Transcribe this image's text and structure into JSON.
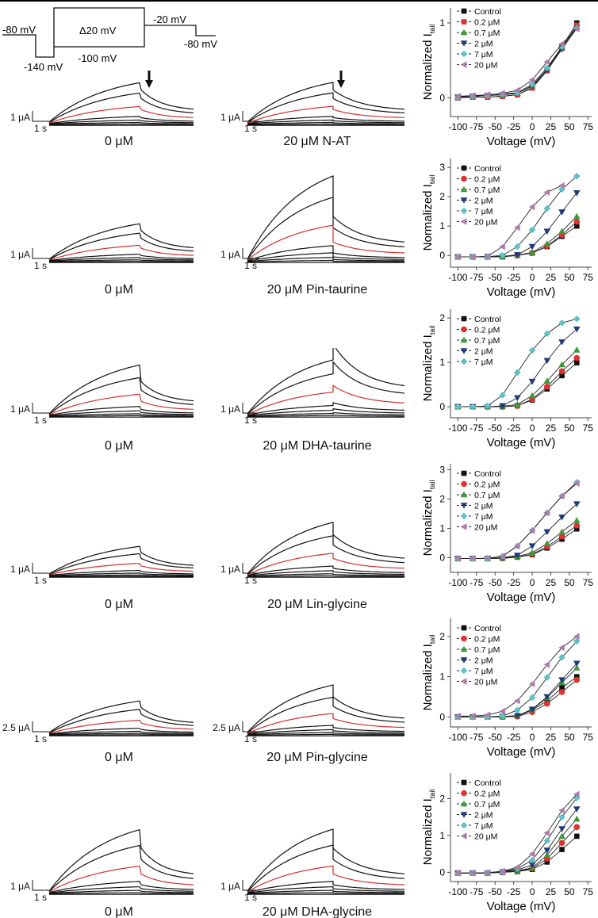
{
  "protocol": {
    "hold_start": "-80 mV",
    "prepulse": "-140 mV",
    "step": "Δ20 mV",
    "step_base": "-100 mV",
    "tail": "-20 mV",
    "hold_end": "-80 mV"
  },
  "rows": [
    {
      "left_label": "0 μM",
      "right_label": "20 μM N-AT",
      "current_scale": "1 μA",
      "time_scale": "1 s",
      "arrow": true
    },
    {
      "left_label": "0 μM",
      "right_label": "20 μM Pin-taurine",
      "current_scale": "1 μA",
      "time_scale": "1 s",
      "arrow": false
    },
    {
      "left_label": "0 μM",
      "right_label": "20 μM DHA-taurine",
      "current_scale": "1 μA",
      "time_scale": "1 s",
      "arrow": false
    },
    {
      "left_label": "0 μM",
      "right_label": "20 μM Lin-glycine",
      "current_scale": "1 μA",
      "time_scale": "1 s",
      "arrow": false
    },
    {
      "left_label": "0 μM",
      "right_label": "20 μM Pin-glycine",
      "current_scale": "2.5 μA",
      "time_scale": "1 s",
      "arrow": false
    },
    {
      "left_label": "0 μM",
      "right_label": "20 μM DHA-glycine",
      "current_scale": "1 μA",
      "time_scale": "1 s",
      "arrow": false
    }
  ],
  "series_style": {
    "Control": {
      "color": "#111111",
      "marker": "square"
    },
    "0.2 μM": {
      "color": "#e03030",
      "marker": "circle"
    },
    "0.7 μM": {
      "color": "#3a9a3a",
      "marker": "triangle-up"
    },
    "2 μM": {
      "color": "#1f3a7a",
      "marker": "triangle-down"
    },
    "7 μM": {
      "color": "#5fc0c8",
      "marker": "diamond"
    },
    "20 μM": {
      "color": "#b07aaa",
      "marker": "triangle-left"
    }
  },
  "chart_data": [
    {
      "type": "line",
      "xlabel": "Voltage (mV)",
      "ylabel": "Normalized I",
      "ylabel_sub": "tail",
      "xlim": [
        -110,
        80
      ],
      "ylim": [
        -0.25,
        1.2
      ],
      "xticks": [
        -100,
        -75,
        -50,
        -25,
        0,
        25,
        50,
        75
      ],
      "yticks": [
        0,
        1
      ],
      "legend": "top-left",
      "x": [
        -100,
        -80,
        -60,
        -40,
        -20,
        0,
        20,
        40,
        60
      ],
      "series": [
        {
          "name": "Control",
          "values": [
            0,
            0.01,
            0.01,
            0.02,
            0.04,
            0.14,
            0.38,
            0.68,
            1.0
          ]
        },
        {
          "name": "0.2 μM",
          "values": [
            0,
            0.01,
            0.01,
            0.02,
            0.04,
            0.13,
            0.36,
            0.66,
            0.97
          ]
        },
        {
          "name": "0.7 μM",
          "values": [
            0.01,
            0.02,
            0.03,
            0.04,
            0.06,
            0.16,
            0.38,
            0.67,
            0.95
          ]
        },
        {
          "name": "2 μM",
          "values": [
            0.01,
            0.02,
            0.03,
            0.04,
            0.06,
            0.16,
            0.37,
            0.65,
            0.93
          ]
        },
        {
          "name": "7 μM",
          "values": [
            0.01,
            0.02,
            0.03,
            0.05,
            0.07,
            0.18,
            0.4,
            0.68,
            0.93
          ]
        },
        {
          "name": "20 μM",
          "values": [
            0.02,
            0.03,
            0.04,
            0.06,
            0.1,
            0.24,
            0.48,
            0.72,
            0.92
          ]
        }
      ]
    },
    {
      "type": "line",
      "xlabel": "Voltage (mV)",
      "ylabel": "Normalized I",
      "ylabel_sub": "tail",
      "xlim": [
        -110,
        80
      ],
      "ylim": [
        -0.4,
        3.3
      ],
      "xticks": [
        -100,
        -75,
        -50,
        -25,
        0,
        25,
        50,
        75
      ],
      "yticks": [
        0,
        1,
        2,
        3
      ],
      "legend": "top-left",
      "x": [
        -100,
        -80,
        -60,
        -40,
        -20,
        0,
        20,
        40,
        60
      ],
      "series": [
        {
          "name": "Control",
          "values": [
            -0.05,
            -0.05,
            -0.05,
            -0.05,
            0,
            0.08,
            0.3,
            0.65,
            1.0
          ]
        },
        {
          "name": "0.2 μM",
          "values": [
            -0.05,
            -0.05,
            -0.05,
            -0.04,
            0,
            0.08,
            0.32,
            0.7,
            1.15
          ]
        },
        {
          "name": "0.7 μM",
          "values": [
            -0.05,
            -0.05,
            -0.05,
            -0.04,
            0.01,
            0.1,
            0.4,
            0.82,
            1.33
          ]
        },
        {
          "name": "2 μM",
          "values": [
            -0.05,
            -0.05,
            -0.04,
            -0.03,
            0.02,
            0.3,
            0.82,
            1.48,
            2.13
          ]
        },
        {
          "name": "7 μM",
          "values": [
            -0.05,
            -0.05,
            -0.04,
            0,
            0.3,
            0.87,
            1.6,
            2.25,
            2.7
          ]
        },
        {
          "name": "20 μM",
          "values": [
            -0.05,
            -0.05,
            -0.03,
            0.3,
            0.95,
            1.65,
            2.15,
            2.38,
            null
          ]
        }
      ]
    },
    {
      "type": "line",
      "xlabel": "Voltage (mV)",
      "ylabel": "Normalized I",
      "ylabel_sub": "tail",
      "xlim": [
        -110,
        80
      ],
      "ylim": [
        -0.25,
        2.2
      ],
      "xticks": [
        -100,
        -75,
        -50,
        -25,
        0,
        25,
        50,
        75
      ],
      "yticks": [
        0,
        1,
        2
      ],
      "legend": "top-left",
      "x": [
        -100,
        -80,
        -60,
        -40,
        -20,
        0,
        20,
        40,
        60
      ],
      "series": [
        {
          "name": "Control",
          "values": [
            0,
            0,
            0,
            0,
            0.02,
            0.15,
            0.4,
            0.7,
            0.99
          ]
        },
        {
          "name": "0.2 μM",
          "values": [
            0,
            0,
            0,
            0,
            0.02,
            0.17,
            0.45,
            0.8,
            1.1
          ]
        },
        {
          "name": "0.7 μM",
          "values": [
            0,
            0,
            0,
            0.01,
            0.05,
            0.25,
            0.58,
            0.95,
            1.28
          ]
        },
        {
          "name": "2 μM",
          "values": [
            0,
            0,
            0,
            0.02,
            0.2,
            0.57,
            1.04,
            1.46,
            1.75
          ]
        },
        {
          "name": "7 μM",
          "values": [
            0,
            0,
            0.02,
            0.26,
            0.77,
            1.27,
            1.65,
            1.89,
            1.98
          ]
        }
      ]
    },
    {
      "type": "line",
      "xlabel": "Voltage (mV)",
      "ylabel": "Normalized I",
      "ylabel_sub": "tail",
      "xlim": [
        -110,
        80
      ],
      "ylim": [
        -0.5,
        3.2
      ],
      "xticks": [
        -100,
        -75,
        -50,
        -25,
        0,
        25,
        50,
        75
      ],
      "yticks": [
        0,
        1,
        2,
        3
      ],
      "legend": "top-left",
      "x": [
        -100,
        -80,
        -60,
        -40,
        -20,
        0,
        20,
        40,
        60
      ],
      "series": [
        {
          "name": "Control",
          "values": [
            -0.03,
            -0.03,
            -0.03,
            -0.02,
            0.02,
            0.1,
            0.33,
            0.63,
            0.98
          ]
        },
        {
          "name": "0.2 μM",
          "values": [
            -0.03,
            -0.03,
            -0.03,
            -0.02,
            0.02,
            0.12,
            0.38,
            0.72,
            1.1
          ]
        },
        {
          "name": "0.7 μM",
          "values": [
            -0.03,
            -0.03,
            -0.03,
            -0.01,
            0.04,
            0.17,
            0.48,
            0.88,
            1.27
          ]
        },
        {
          "name": "2 μM",
          "values": [
            -0.03,
            -0.03,
            -0.03,
            0,
            0.08,
            0.4,
            0.88,
            1.38,
            1.83
          ]
        },
        {
          "name": "7 μM",
          "values": [
            -0.03,
            -0.03,
            -0.02,
            0.05,
            0.4,
            0.93,
            1.53,
            2.1,
            2.57
          ]
        },
        {
          "name": "20 μM",
          "values": [
            -0.03,
            -0.03,
            -0.02,
            0.05,
            0.4,
            0.93,
            1.53,
            2.1,
            2.53
          ]
        }
      ]
    },
    {
      "type": "line",
      "xlabel": "Voltage (mV)",
      "ylabel": "Normalized I",
      "ylabel_sub": "tail",
      "xlim": [
        -110,
        80
      ],
      "ylim": [
        -0.25,
        2.45
      ],
      "xticks": [
        -100,
        -75,
        -50,
        -25,
        0,
        25,
        50,
        75
      ],
      "yticks": [
        0,
        1,
        2
      ],
      "legend": "top-left",
      "x": [
        -100,
        -80,
        -60,
        -40,
        -20,
        0,
        20,
        40,
        60
      ],
      "series": [
        {
          "name": "Control",
          "values": [
            0,
            0,
            0,
            0,
            0.02,
            0.17,
            0.4,
            0.72,
            1.0
          ]
        },
        {
          "name": "0.2 μM",
          "values": [
            0,
            0,
            0,
            0,
            0.01,
            0.12,
            0.33,
            0.62,
            0.92
          ]
        },
        {
          "name": "0.7 μM",
          "values": [
            0,
            0,
            0,
            0.01,
            0.03,
            0.18,
            0.48,
            0.85,
            1.22
          ]
        },
        {
          "name": "2 μM",
          "values": [
            0,
            0,
            0,
            0.01,
            0.03,
            0.19,
            0.5,
            0.92,
            1.33
          ]
        },
        {
          "name": "7 μM",
          "values": [
            0,
            0,
            0,
            0.02,
            0.17,
            0.48,
            0.98,
            1.48,
            1.88
          ]
        },
        {
          "name": "20 μM",
          "values": [
            0.02,
            0.02,
            0.05,
            0.14,
            0.4,
            0.82,
            1.3,
            1.72,
            2.0
          ]
        }
      ]
    },
    {
      "type": "line",
      "xlabel": "Voltage (mV)",
      "ylabel": "Normalized I",
      "ylabel_sub": "tail",
      "xlim": [
        -110,
        80
      ],
      "ylim": [
        -0.25,
        2.7
      ],
      "xticks": [
        -100,
        -75,
        -50,
        -25,
        0,
        25,
        50,
        75
      ],
      "yticks": [
        0,
        1,
        2
      ],
      "legend": "top-left",
      "x": [
        -100,
        -80,
        -60,
        -40,
        -20,
        0,
        20,
        40,
        60
      ],
      "series": [
        {
          "name": "Control",
          "values": [
            -0.02,
            -0.02,
            -0.02,
            0,
            0.02,
            0.08,
            0.28,
            0.62,
            0.98
          ]
        },
        {
          "name": "0.2 μM",
          "values": [
            -0.02,
            -0.02,
            -0.02,
            0,
            0.03,
            0.1,
            0.37,
            0.8,
            1.23
          ]
        },
        {
          "name": "0.7 μM",
          "values": [
            -0.02,
            -0.02,
            -0.02,
            0.01,
            0.05,
            0.12,
            0.47,
            0.98,
            1.45
          ]
        },
        {
          "name": "2 μM",
          "values": [
            -0.02,
            -0.02,
            -0.02,
            0.01,
            0.07,
            0.2,
            0.6,
            1.18,
            1.72
          ]
        },
        {
          "name": "7 μM",
          "values": [
            -0.02,
            -0.02,
            -0.01,
            0.02,
            0.1,
            0.33,
            0.86,
            1.5,
            2.02
          ]
        },
        {
          "name": "20 μM",
          "values": [
            -0.02,
            -0.02,
            -0.01,
            0.03,
            0.14,
            0.5,
            1.07,
            1.68,
            2.12
          ]
        }
      ]
    }
  ]
}
